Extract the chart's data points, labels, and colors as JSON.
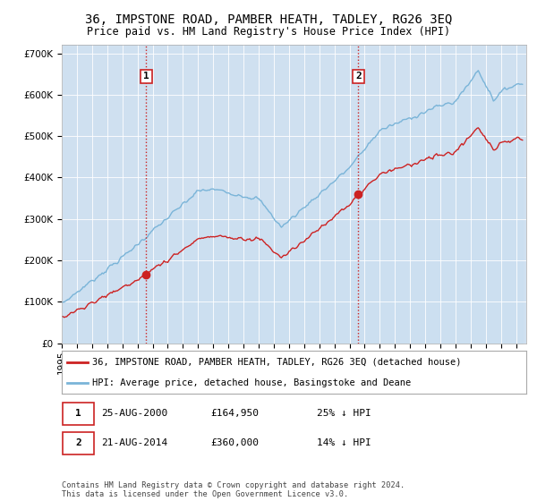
{
  "title": "36, IMPSTONE ROAD, PAMBER HEATH, TADLEY, RG26 3EQ",
  "subtitle": "Price paid vs. HM Land Registry's House Price Index (HPI)",
  "ylim": [
    0,
    720000
  ],
  "yticks": [
    0,
    100000,
    200000,
    300000,
    400000,
    500000,
    600000,
    700000
  ],
  "ytick_labels": [
    "£0",
    "£100K",
    "£200K",
    "£300K",
    "£400K",
    "£500K",
    "£600K",
    "£700K"
  ],
  "hpi_color": "#7ab4d8",
  "hpi_fill": "#c8dff0",
  "price_color": "#cc2222",
  "marker1_price": 164950,
  "marker2_price": 360000,
  "legend_line1": "36, IMPSTONE ROAD, PAMBER HEATH, TADLEY, RG26 3EQ (detached house)",
  "legend_line2": "HPI: Average price, detached house, Basingstoke and Deane",
  "footer": "Contains HM Land Registry data © Crown copyright and database right 2024.\nThis data is licensed under the Open Government Licence v3.0.",
  "bg_color": "#cfe0f0",
  "title_fontsize": 10,
  "subtitle_fontsize": 8.5,
  "tick_fontsize": 7.5
}
